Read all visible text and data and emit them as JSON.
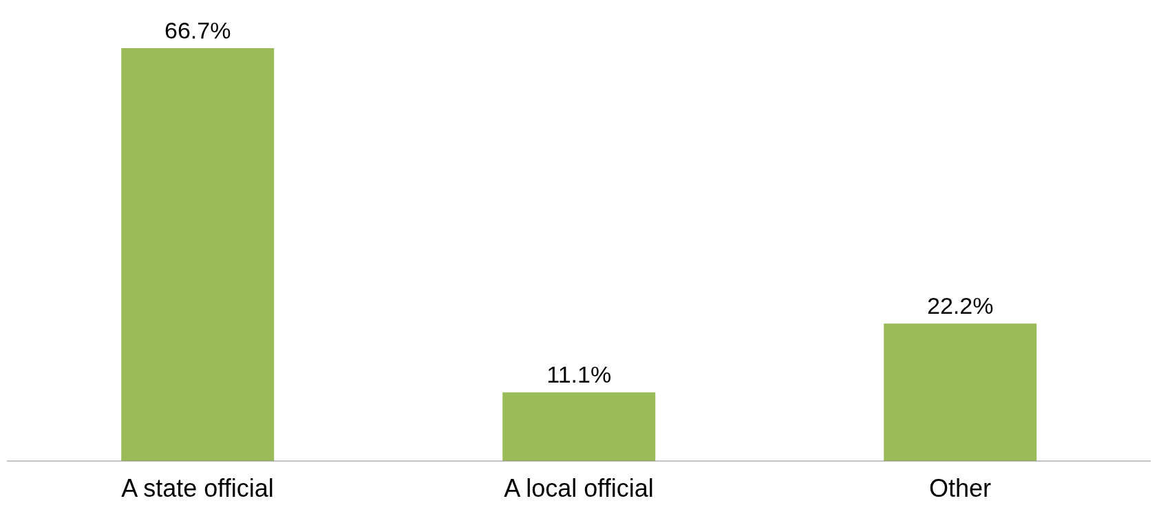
{
  "chart_data": {
    "type": "bar",
    "categories": [
      "A state official",
      "A local official",
      "Other"
    ],
    "values": [
      66.7,
      11.1,
      22.2
    ],
    "value_labels": [
      "66.7%",
      "11.1%",
      "22.2%"
    ],
    "color": "#9bbb59",
    "grid": false,
    "legend": false
  }
}
